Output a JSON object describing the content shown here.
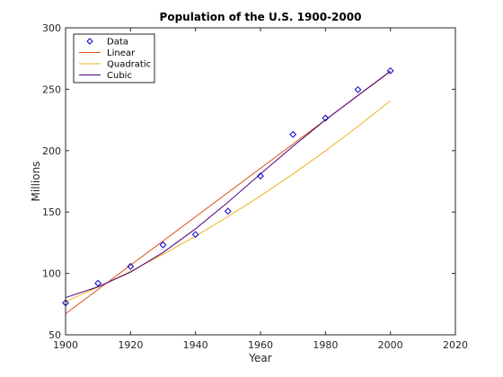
{
  "chart_data": {
    "type": "scatter",
    "title": "Population of the U.S. 1900-2000",
    "xlabel": "Year",
    "ylabel": "Millions",
    "xlim": [
      1900,
      2020
    ],
    "ylim": [
      50,
      300
    ],
    "xticks": [
      1900,
      1920,
      1940,
      1960,
      1980,
      2000,
      2020
    ],
    "yticks": [
      50,
      100,
      150,
      200,
      250,
      300
    ],
    "legend_position": "top-left",
    "grid": false,
    "series": [
      {
        "name": "Data",
        "kind": "markers",
        "marker": "diamond",
        "color": "#0000cc",
        "x": [
          1900,
          1910,
          1920,
          1930,
          1940,
          1950,
          1960,
          1970,
          1980,
          1990,
          2000
        ],
        "y": [
          75.995,
          91.972,
          105.711,
          123.203,
          131.669,
          150.697,
          179.323,
          213.212,
          226.505,
          249.633,
          265.0
        ]
      },
      {
        "name": "Linear",
        "kind": "line",
        "color": "#d95319",
        "x": [
          1900,
          2000
        ],
        "y": [
          67.2,
          264.5
        ]
      },
      {
        "name": "Quadratic",
        "kind": "line",
        "color": "#edb120",
        "x": [
          1900,
          1910,
          1920,
          1930,
          1940,
          1950,
          1960,
          1970,
          1980,
          1990,
          2000
        ],
        "y": [
          77.0,
          88.9,
          101.7,
          115.6,
          130.4,
          146.3,
          163.1,
          181.0,
          199.8,
          219.7,
          240.6
        ]
      },
      {
        "name": "Cubic",
        "kind": "line",
        "color": "#4b0082",
        "x": [
          1900,
          1910,
          1920,
          1930,
          1940,
          1950,
          1960,
          1970,
          1980,
          1990,
          2000
        ],
        "y": [
          80.3,
          89.1,
          101.0,
          117.0,
          136.3,
          158.0,
          181.0,
          203.5,
          225.0,
          245.0,
          264.7
        ]
      }
    ],
    "legend": [
      {
        "label": "Data"
      },
      {
        "label": "Linear"
      },
      {
        "label": "Quadratic"
      },
      {
        "label": "Cubic"
      }
    ]
  }
}
